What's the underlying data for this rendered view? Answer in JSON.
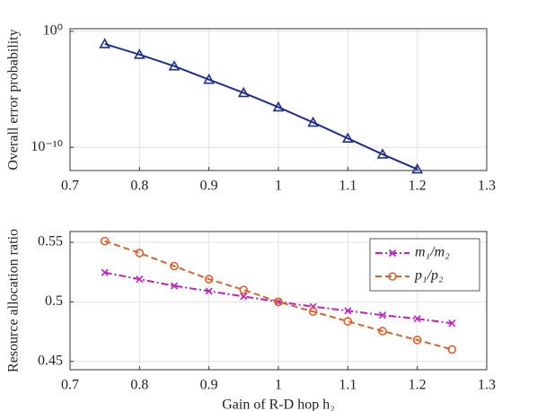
{
  "chart_data": [
    {
      "type": "line",
      "ylabel": "Overall error probability",
      "log_y": true,
      "grid": true,
      "x": [
        0.75,
        0.8,
        0.85,
        0.9,
        0.95,
        1.0,
        1.05,
        1.1,
        1.15,
        1.2
      ],
      "series": [
        {
          "color": "#1f2f8f",
          "marker": "triangle",
          "dash": "none",
          "values": [
            0.083,
            0.01,
            0.001,
            7e-05,
            5e-06,
            2.9e-07,
            1.4e-08,
            5.9e-10,
            2.5e-11,
            1.3e-12
          ]
        }
      ],
      "xlim": [
        0.7,
        1.3
      ],
      "xticks": [
        0.7,
        0.8,
        0.9,
        1,
        1.1,
        1.2,
        1.3
      ],
      "ylim": [
        1e-12,
        1.7
      ],
      "yticks": [
        {
          "value": 1,
          "label": "10⁰"
        },
        {
          "value": 1e-10,
          "label": "10⁻¹⁰"
        }
      ]
    },
    {
      "type": "line",
      "ylabel": "Resource allocation ratio",
      "xlabel": "Gain of R-D hop h₂",
      "grid": true,
      "x": [
        0.75,
        0.8,
        0.85,
        0.9,
        0.95,
        1.0,
        1.05,
        1.1,
        1.15,
        1.2,
        1.25
      ],
      "series": [
        {
          "name": "m₁/m₂",
          "color": "#c020c0",
          "marker": "x",
          "dash": "8 3 2 3",
          "values": [
            0.5246,
            0.519,
            0.5134,
            0.509,
            0.5045,
            0.5,
            0.496,
            0.4925,
            0.4888,
            0.4858,
            0.482
          ]
        },
        {
          "name": "p₁/p₂",
          "color": "#e0602a",
          "marker": "circle",
          "dash": "7 4",
          "values": [
            0.551,
            0.541,
            0.53,
            0.519,
            0.51,
            0.5,
            0.4918,
            0.4836,
            0.4754,
            0.468,
            0.46
          ]
        }
      ],
      "xlim": [
        0.7,
        1.3
      ],
      "xticks": [
        0.7,
        0.8,
        0.9,
        1,
        1.1,
        1.2,
        1.3
      ],
      "ylim": [
        0.443,
        0.559
      ],
      "yticks": [
        0.45,
        0.5,
        0.55
      ],
      "legend": "upper right"
    }
  ]
}
